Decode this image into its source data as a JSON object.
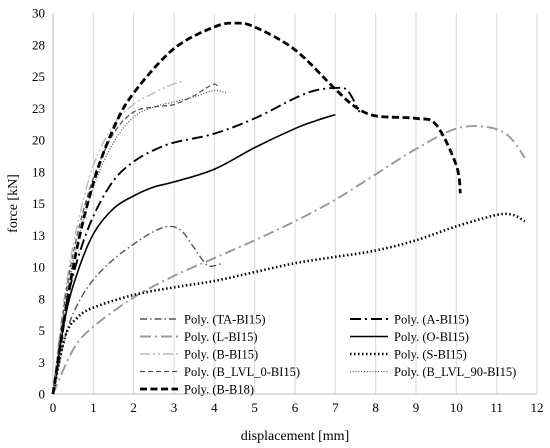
{
  "chart_data": {
    "type": "line",
    "xlabel": "displacement [mm]",
    "ylabel": "force [kN]",
    "xlim": [
      0,
      12
    ],
    "ylim": [
      0,
      30
    ],
    "x_ticks": [
      "0",
      "1",
      "2",
      "3",
      "4",
      "5",
      "6",
      "7",
      "8",
      "9",
      "10",
      "11",
      "12"
    ],
    "y_ticks": [
      {
        "value": 0,
        "label": "0"
      },
      {
        "value": 2.5,
        "label": "3"
      },
      {
        "value": 5,
        "label": "5"
      },
      {
        "value": 7.5,
        "label": "8"
      },
      {
        "value": 10,
        "label": "10"
      },
      {
        "value": 12.5,
        "label": "13"
      },
      {
        "value": 15,
        "label": "15"
      },
      {
        "value": 17.5,
        "label": "18"
      },
      {
        "value": 20,
        "label": "20"
      },
      {
        "value": 22.5,
        "label": "23"
      },
      {
        "value": 25,
        "label": "25"
      },
      {
        "value": 27.5,
        "label": "28"
      },
      {
        "value": 30,
        "label": "30"
      }
    ],
    "grid": "vertical",
    "legend_position": "bottom-right",
    "series": [
      {
        "name": "Poly. (TA-BI15)",
        "style": "dash-dot",
        "color": "#555555",
        "x": [
          0,
          0.3,
          0.6,
          1.0,
          1.5,
          2.0,
          2.5,
          2.9,
          3.2,
          3.5,
          3.8,
          4.0,
          4.2
        ],
        "y": [
          0,
          4.5,
          7.0,
          9.0,
          10.6,
          11.8,
          12.8,
          13.2,
          12.8,
          11.5,
          10.2,
          10.1,
          10.3
        ]
      },
      {
        "name": "Poly. (A-BI15)",
        "style": "long-dash-dot",
        "color": "#000000",
        "x": [
          0,
          0.3,
          0.6,
          1.0,
          1.5,
          2.0,
          2.5,
          3.0,
          4.0,
          5.0,
          6.0,
          6.5,
          7.0,
          7.3,
          7.6
        ],
        "y": [
          0,
          6.5,
          10.5,
          14.0,
          16.8,
          18.3,
          19.2,
          19.8,
          20.5,
          21.7,
          23.3,
          23.9,
          24.1,
          23.9,
          22.2
        ]
      },
      {
        "name": "Poly. (L-BI15)",
        "style": "long-dash-dot",
        "color": "#999999",
        "x": [
          0,
          0.5,
          1.0,
          2.0,
          3.0,
          4.0,
          5.0,
          6.0,
          7.0,
          8.0,
          9.0,
          10.0,
          10.8,
          11.3,
          11.7
        ],
        "y": [
          0,
          3.5,
          5.3,
          7.6,
          9.3,
          10.7,
          12.1,
          13.6,
          15.3,
          17.3,
          19.3,
          20.9,
          21.0,
          20.3,
          18.6
        ]
      },
      {
        "name": "Poly. (O-BI15)",
        "style": "solid",
        "color": "#000000",
        "x": [
          0,
          0.3,
          0.6,
          1.0,
          1.5,
          2.0,
          2.5,
          3.0,
          4.0,
          5.0,
          6.0,
          6.5,
          7.0
        ],
        "y": [
          0,
          6.0,
          9.5,
          12.6,
          14.6,
          15.6,
          16.3,
          16.7,
          17.7,
          19.4,
          20.9,
          21.5,
          22.0
        ]
      },
      {
        "name": "Poly. (B-BI15)",
        "style": "long-dash-dot-dot",
        "color": "#bbbbbb",
        "x": [
          0,
          0.3,
          0.6,
          1.0,
          1.5,
          2.0,
          2.5,
          2.9,
          3.2
        ],
        "y": [
          0,
          8.0,
          13.2,
          18.0,
          21.2,
          22.8,
          23.7,
          24.3,
          24.6
        ]
      },
      {
        "name": "Poly. (S-BI15)",
        "style": "dotted",
        "color": "#000000",
        "x": [
          0,
          0.3,
          0.6,
          1.0,
          2.0,
          3.0,
          4.0,
          5.0,
          6.0,
          7.0,
          8.0,
          9.0,
          10.0,
          11.0,
          11.4,
          11.7
        ],
        "y": [
          0,
          4.5,
          6.0,
          6.8,
          7.8,
          8.4,
          8.9,
          9.6,
          10.3,
          10.8,
          11.3,
          12.1,
          13.2,
          14.1,
          14.1,
          13.6
        ]
      },
      {
        "name": "Poly. (B_LVL_0-BI15)",
        "style": "dashed",
        "color": "#555555",
        "x": [
          0,
          0.3,
          0.6,
          1.0,
          1.5,
          2.0,
          2.5,
          3.0,
          3.5,
          3.8,
          4.0,
          4.1
        ],
        "y": [
          0,
          7.5,
          12.5,
          17.0,
          20.5,
          22.2,
          22.6,
          22.8,
          23.5,
          24.1,
          24.4,
          24.2
        ]
      },
      {
        "name": "Poly. (B_LVL_90-BI15)",
        "style": "fine-dotted",
        "color": "#555555",
        "x": [
          0,
          0.3,
          0.6,
          1.0,
          1.5,
          2.0,
          2.5,
          3.0,
          3.5,
          4.0,
          4.3
        ],
        "y": [
          0,
          7.0,
          11.8,
          16.3,
          19.8,
          21.8,
          22.6,
          23.0,
          23.4,
          23.9,
          23.7
        ]
      },
      {
        "name": "Poly. (B-B18)",
        "style": "heavy-dashed",
        "color": "#000000",
        "x": [
          0,
          0.5,
          1.0,
          1.5,
          2.0,
          3.0,
          4.0,
          4.5,
          5.0,
          6.0,
          7.0,
          7.5,
          8.0,
          9.0,
          9.5,
          10.0,
          10.1
        ],
        "y": [
          0,
          10.0,
          16.6,
          20.9,
          23.7,
          27.2,
          28.9,
          29.2,
          28.9,
          27.1,
          24.0,
          22.6,
          21.9,
          21.7,
          21.2,
          18.0,
          15.8
        ]
      }
    ]
  },
  "legend_columns": 2
}
